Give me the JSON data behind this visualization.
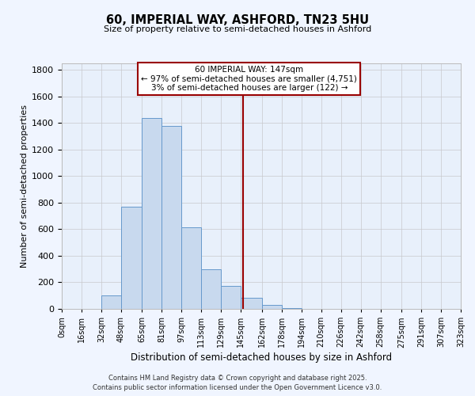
{
  "title": "60, IMPERIAL WAY, ASHFORD, TN23 5HU",
  "subtitle": "Size of property relative to semi-detached houses in Ashford",
  "xlabel": "Distribution of semi-detached houses by size in Ashford",
  "ylabel": "Number of semi-detached properties",
  "bar_color": "#c8d9ee",
  "bar_edge_color": "#6699cc",
  "bg_color": "#f0f5ff",
  "plot_bg_color": "#e8f0fb",
  "grid_color": "#c8c8cc",
  "vline_x": 147,
  "vline_color": "#990000",
  "bin_edges": [
    0,
    16,
    32,
    48,
    65,
    81,
    97,
    113,
    129,
    145,
    162,
    178,
    194,
    210,
    226,
    242,
    258,
    275,
    291,
    307,
    323
  ],
  "bin_labels": [
    "0sqm",
    "16sqm",
    "32sqm",
    "48sqm",
    "65sqm",
    "81sqm",
    "97sqm",
    "113sqm",
    "129sqm",
    "145sqm",
    "162sqm",
    "178sqm",
    "194sqm",
    "210sqm",
    "226sqm",
    "242sqm",
    "258sqm",
    "275sqm",
    "291sqm",
    "307sqm",
    "323sqm"
  ],
  "counts": [
    0,
    0,
    100,
    770,
    1440,
    1380,
    615,
    300,
    175,
    85,
    30,
    5,
    0,
    0,
    0,
    0,
    0,
    0,
    0,
    0
  ],
  "ylim": [
    0,
    1850
  ],
  "annotation_box_color": "#ffffff",
  "annotation_box_edge_color": "#990000",
  "footer_line1": "Contains HM Land Registry data © Crown copyright and database right 2025.",
  "footer_line2": "Contains public sector information licensed under the Open Government Licence v3.0.",
  "property_size": 147,
  "pct_smaller": 97,
  "n_smaller": 4751,
  "pct_larger": 3,
  "n_larger": 122
}
